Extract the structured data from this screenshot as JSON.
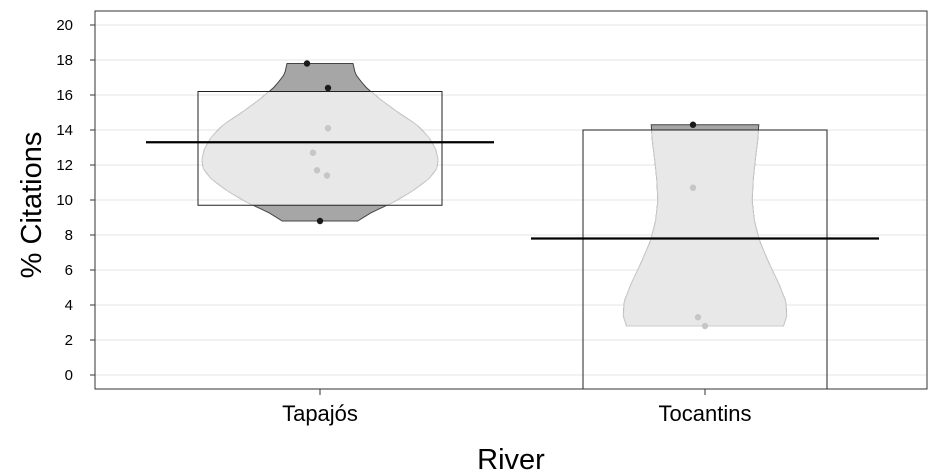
{
  "chart_data": {
    "type": "pirate",
    "xlabel": "River",
    "ylabel": "% Citations",
    "ylim": [
      -0.8,
      20.8
    ],
    "yticks": [
      0,
      2,
      4,
      6,
      8,
      10,
      12,
      14,
      16,
      18,
      20
    ],
    "grid": true,
    "categories": [
      "Tapajós",
      "Tocantins"
    ],
    "groups": [
      {
        "name": "Tapajós",
        "mean": 13.3,
        "interval": [
          9.7,
          16.2
        ],
        "range": [
          8.8,
          17.8
        ],
        "points": [
          17.8,
          16.4,
          14.1,
          12.7,
          11.7,
          11.4,
          8.8
        ]
      },
      {
        "name": "Tocantins",
        "mean": 7.8,
        "interval": [
          -0.8,
          14.0
        ],
        "range": [
          2.8,
          14.3
        ],
        "points": [
          14.3,
          10.7,
          3.3,
          2.8
        ]
      }
    ],
    "colors": {
      "violin_fill": "#e8e8e8",
      "violin_outline": "#cccccc",
      "tail_fill": "#a6a6a6",
      "tail_outline": "#444444",
      "point_in": "#c6c6c6",
      "point_out": "#1a1a1a",
      "mean_line": "#000000",
      "box_outline": "#222222",
      "grid": "#e6e6e6"
    }
  }
}
